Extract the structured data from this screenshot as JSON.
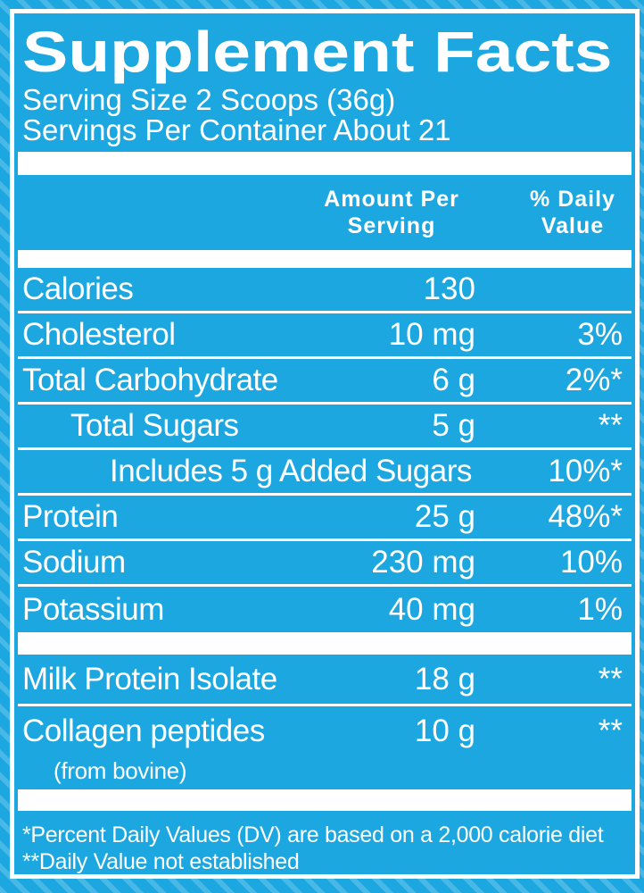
{
  "colors": {
    "label_blue": "#1CA7E0",
    "border_white": "#FFFFFF",
    "text_white": "#FFFFFF"
  },
  "title": "Supplement Facts",
  "serving_info": {
    "serving_size": "Serving Size 2 Scoops (36g)",
    "servings_per_container": "Servings Per Container About 21"
  },
  "table_header": {
    "amount_line1": "Amount Per",
    "amount_line2": "Serving",
    "dv_line1": "% Daily",
    "dv_line2": "Value"
  },
  "nutrients": [
    {
      "label": "Calories",
      "amount": "130",
      "dv": ""
    },
    {
      "label": "Cholesterol",
      "amount": "10 mg",
      "dv": "3%"
    },
    {
      "label": "Total Carbohydrate",
      "amount": "6 g",
      "dv": "2%*"
    },
    {
      "label": "Total Sugars",
      "amount": "5 g",
      "dv": "**"
    },
    {
      "label": "Includes 5 g Added Sugars",
      "amount": "",
      "dv": "10%*"
    },
    {
      "label": "Protein",
      "amount": "25 g",
      "dv": "48%*"
    },
    {
      "label": "Sodium",
      "amount": "230 mg",
      "dv": "10%"
    },
    {
      "label": "Potassium",
      "amount": "40 mg",
      "dv": "1%"
    }
  ],
  "supplements": [
    {
      "label": "Milk Protein Isolate",
      "amount": "18 g",
      "dv": "**",
      "note": ""
    },
    {
      "label": "Collagen peptides",
      "amount": "10 g",
      "dv": "**",
      "note": "(from bovine)"
    }
  ],
  "footnotes": {
    "daily_value": "*Percent Daily Values (DV) are based on a 2,000 calorie diet",
    "not_established": "**Daily Value not established"
  }
}
